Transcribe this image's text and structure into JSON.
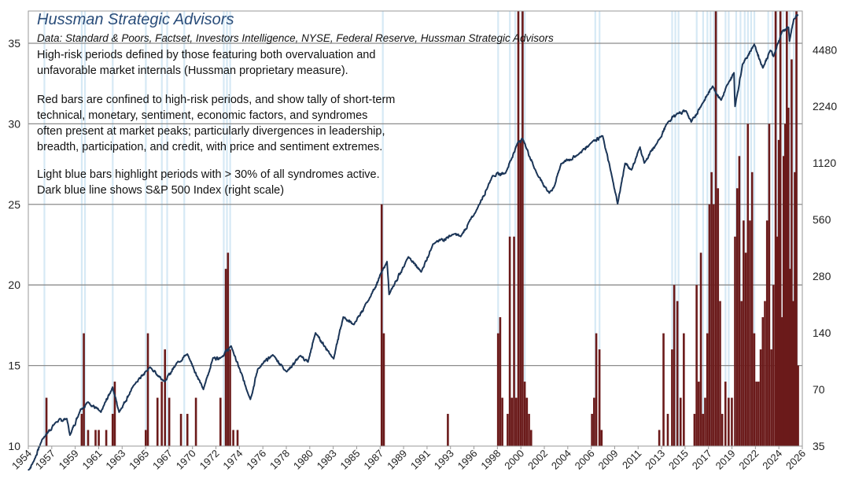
{
  "header": {
    "title": "Hussman Strategic Advisors",
    "source": "Data: Standard & Poors, Factset,  Investors Intelligence,  NYSE, Federal Reserve, Hussman Strategic Advisors"
  },
  "notes": {
    "p1": [
      "High-risk periods defined by those featuring both overvaluation and",
      "unfavorable market internals (Hussman proprietary measure)."
    ],
    "p2": [
      "Red bars are confined to high-risk periods, and show tally of short-term",
      "technical, monetary, sentiment, economic factors, and syndromes",
      "often  present at market peaks; particularly divergences in leadership,",
      "breadth, participation, and credit, with price and sentiment extremes."
    ],
    "p3": [
      "Light blue bars highlight periods with > 30% of all syndromes active.",
      "Dark blue line shows S&P 500 Index (right scale)"
    ]
  },
  "colors": {
    "red_bar": "#6b1a1a",
    "sp500_line": "#1b3557",
    "light_blue": "#d6e9f5",
    "grid": "#8c8c8c",
    "title": "#2a4d7a"
  },
  "chart_data": {
    "type": "bar",
    "left_axis": {
      "range": [
        10,
        37
      ],
      "ticks": [
        10,
        15,
        20,
        25,
        30,
        35
      ]
    },
    "right_axis": {
      "scale": "log",
      "range": [
        35,
        7200
      ],
      "ticks": [
        35,
        70,
        140,
        280,
        560,
        1120,
        2240,
        4480
      ]
    },
    "x_range": [
      1954,
      2026.5
    ],
    "x_tick_labels": [
      "1954",
      "1957",
      "1959",
      "1961",
      "1963",
      "1965",
      "1967",
      "1970",
      "1972",
      "1974",
      "1976",
      "1978",
      "1980",
      "1983",
      "1985",
      "1987",
      "1989",
      "1991",
      "1993",
      "1996",
      "1998",
      "2000",
      "2002",
      "2004",
      "2006",
      "2009",
      "2011",
      "2013",
      "2015",
      "2017",
      "2019",
      "2022",
      "2024",
      "2026"
    ],
    "grid": true,
    "red_bars": [
      {
        "x": 1955.7,
        "v": 13
      },
      {
        "x": 1959.0,
        "v": 12
      },
      {
        "x": 1959.2,
        "v": 17
      },
      {
        "x": 1959.6,
        "v": 11
      },
      {
        "x": 1960.3,
        "v": 11
      },
      {
        "x": 1960.6,
        "v": 11
      },
      {
        "x": 1961.3,
        "v": 11
      },
      {
        "x": 1961.9,
        "v": 12
      },
      {
        "x": 1962.1,
        "v": 14
      },
      {
        "x": 1965.0,
        "v": 11
      },
      {
        "x": 1965.2,
        "v": 17
      },
      {
        "x": 1966.1,
        "v": 13
      },
      {
        "x": 1966.5,
        "v": 14
      },
      {
        "x": 1966.8,
        "v": 16
      },
      {
        "x": 1967.2,
        "v": 13
      },
      {
        "x": 1968.3,
        "v": 12
      },
      {
        "x": 1968.9,
        "v": 12
      },
      {
        "x": 1969.7,
        "v": 13
      },
      {
        "x": 1972.0,
        "v": 13
      },
      {
        "x": 1972.5,
        "v": 21
      },
      {
        "x": 1972.7,
        "v": 22
      },
      {
        "x": 1972.9,
        "v": 16
      },
      {
        "x": 1973.2,
        "v": 11
      },
      {
        "x": 1973.6,
        "v": 11
      },
      {
        "x": 1987.1,
        "v": 25
      },
      {
        "x": 1987.3,
        "v": 17
      },
      {
        "x": 1993.3,
        "v": 12
      },
      {
        "x": 1998.0,
        "v": 17
      },
      {
        "x": 1998.2,
        "v": 18
      },
      {
        "x": 1998.4,
        "v": 13
      },
      {
        "x": 1998.9,
        "v": 12
      },
      {
        "x": 1999.1,
        "v": 23
      },
      {
        "x": 1999.3,
        "v": 13
      },
      {
        "x": 1999.5,
        "v": 23
      },
      {
        "x": 1999.7,
        "v": 13
      },
      {
        "x": 1999.9,
        "v": 37
      },
      {
        "x": 2000.1,
        "v": 29
      },
      {
        "x": 2000.3,
        "v": 37
      },
      {
        "x": 2000.5,
        "v": 14
      },
      {
        "x": 2000.7,
        "v": 13
      },
      {
        "x": 2000.9,
        "v": 12
      },
      {
        "x": 2001.1,
        "v": 11
      },
      {
        "x": 2006.8,
        "v": 12
      },
      {
        "x": 2007.0,
        "v": 13
      },
      {
        "x": 2007.2,
        "v": 17
      },
      {
        "x": 2007.5,
        "v": 16
      },
      {
        "x": 2007.7,
        "v": 11
      },
      {
        "x": 2013.1,
        "v": 11
      },
      {
        "x": 2013.5,
        "v": 17
      },
      {
        "x": 2013.9,
        "v": 12
      },
      {
        "x": 2014.3,
        "v": 16
      },
      {
        "x": 2014.5,
        "v": 20
      },
      {
        "x": 2014.8,
        "v": 19
      },
      {
        "x": 2015.1,
        "v": 13
      },
      {
        "x": 2015.4,
        "v": 17
      },
      {
        "x": 2016.4,
        "v": 12
      },
      {
        "x": 2016.6,
        "v": 20
      },
      {
        "x": 2016.8,
        "v": 14
      },
      {
        "x": 2017.0,
        "v": 22
      },
      {
        "x": 2017.2,
        "v": 12
      },
      {
        "x": 2017.4,
        "v": 13
      },
      {
        "x": 2017.6,
        "v": 17
      },
      {
        "x": 2017.8,
        "v": 25
      },
      {
        "x": 2018.0,
        "v": 27
      },
      {
        "x": 2018.2,
        "v": 25
      },
      {
        "x": 2018.4,
        "v": 37
      },
      {
        "x": 2018.6,
        "v": 26
      },
      {
        "x": 2018.8,
        "v": 19
      },
      {
        "x": 2019.0,
        "v": 12
      },
      {
        "x": 2019.3,
        "v": 14
      },
      {
        "x": 2019.6,
        "v": 13
      },
      {
        "x": 2019.9,
        "v": 13
      },
      {
        "x": 2020.2,
        "v": 23
      },
      {
        "x": 2020.4,
        "v": 26
      },
      {
        "x": 2020.6,
        "v": 28
      },
      {
        "x": 2020.8,
        "v": 19
      },
      {
        "x": 2021.0,
        "v": 24
      },
      {
        "x": 2021.2,
        "v": 22
      },
      {
        "x": 2021.4,
        "v": 30
      },
      {
        "x": 2021.6,
        "v": 24
      },
      {
        "x": 2021.8,
        "v": 27
      },
      {
        "x": 2022.0,
        "v": 17
      },
      {
        "x": 2022.2,
        "v": 14
      },
      {
        "x": 2022.4,
        "v": 14
      },
      {
        "x": 2022.6,
        "v": 16
      },
      {
        "x": 2022.8,
        "v": 18
      },
      {
        "x": 2023.0,
        "v": 19
      },
      {
        "x": 2023.2,
        "v": 24
      },
      {
        "x": 2023.4,
        "v": 30
      },
      {
        "x": 2023.6,
        "v": 16
      },
      {
        "x": 2023.8,
        "v": 20
      },
      {
        "x": 2024.0,
        "v": 37
      },
      {
        "x": 2024.15,
        "v": 23
      },
      {
        "x": 2024.3,
        "v": 29
      },
      {
        "x": 2024.45,
        "v": 37
      },
      {
        "x": 2024.6,
        "v": 18
      },
      {
        "x": 2024.75,
        "v": 28
      },
      {
        "x": 2024.9,
        "v": 30
      },
      {
        "x": 2025.05,
        "v": 37
      },
      {
        "x": 2025.2,
        "v": 31
      },
      {
        "x": 2025.35,
        "v": 21
      },
      {
        "x": 2025.5,
        "v": 34
      },
      {
        "x": 2025.65,
        "v": 19
      },
      {
        "x": 2025.8,
        "v": 27
      },
      {
        "x": 2025.95,
        "v": 37
      },
      {
        "x": 2026.1,
        "v": 15
      }
    ],
    "light_blue_periods": [
      1955.5,
      1959.0,
      1959.3,
      1961.9,
      1965.0,
      1966.5,
      1967.0,
      1968.6,
      1972.3,
      1972.6,
      1972.9,
      1987.2,
      1998.0,
      1999.1,
      1999.6,
      1999.9,
      2000.2,
      2000.5,
      2007.1,
      2007.5,
      2014.3,
      2014.6,
      2014.9,
      2016.6,
      2017.2,
      2017.6,
      2017.9,
      2018.2,
      2018.5,
      2019.3,
      2019.6,
      2020.3,
      2020.7,
      2021.1,
      2021.4,
      2021.7,
      2022.0,
      2023.3,
      2023.7,
      2024.1,
      2024.4,
      2024.7,
      2025.0,
      2025.3,
      2025.7,
      2026.0
    ],
    "sp500_anchors": [
      [
        1954.0,
        26
      ],
      [
        1954.5,
        29
      ],
      [
        1955.3,
        38
      ],
      [
        1956.6,
        47
      ],
      [
        1957.6,
        49
      ],
      [
        1957.9,
        40
      ],
      [
        1958.9,
        55
      ],
      [
        1959.6,
        60
      ],
      [
        1960.8,
        53
      ],
      [
        1961.9,
        72
      ],
      [
        1962.5,
        53
      ],
      [
        1963.9,
        74
      ],
      [
        1965.4,
        92
      ],
      [
        1966.8,
        77
      ],
      [
        1967.9,
        97
      ],
      [
        1968.9,
        108
      ],
      [
        1970.4,
        70
      ],
      [
        1971.3,
        103
      ],
      [
        1972.0,
        103
      ],
      [
        1973.0,
        119
      ],
      [
        1974.8,
        62
      ],
      [
        1975.5,
        90
      ],
      [
        1976.9,
        107
      ],
      [
        1978.2,
        87
      ],
      [
        1979.5,
        106
      ],
      [
        1980.2,
        98
      ],
      [
        1980.9,
        140
      ],
      [
        1982.6,
        102
      ],
      [
        1983.5,
        170
      ],
      [
        1984.5,
        155
      ],
      [
        1985.9,
        210
      ],
      [
        1987.6,
        335
      ],
      [
        1987.8,
        224
      ],
      [
        1989.6,
        355
      ],
      [
        1990.8,
        295
      ],
      [
        1991.9,
        415
      ],
      [
        1993.9,
        470
      ],
      [
        1994.5,
        455
      ],
      [
        1995.9,
        615
      ],
      [
        1997.5,
        960
      ],
      [
        1998.7,
        990
      ],
      [
        1999.9,
        1460
      ],
      [
        2000.3,
        1510
      ],
      [
        2001.7,
        965
      ],
      [
        2002.8,
        775
      ],
      [
        2003.3,
        850
      ],
      [
        2003.9,
        1110
      ],
      [
        2005.5,
        1240
      ],
      [
        2006.9,
        1470
      ],
      [
        2007.8,
        1560
      ],
      [
        2008.8,
        875
      ],
      [
        2009.2,
        680
      ],
      [
        2009.9,
        1115
      ],
      [
        2010.5,
        1030
      ],
      [
        2011.3,
        1360
      ],
      [
        2011.7,
        1120
      ],
      [
        2012.9,
        1430
      ],
      [
        2013.9,
        1840
      ],
      [
        2014.8,
        2060
      ],
      [
        2015.6,
        2120
      ],
      [
        2016.1,
        1850
      ],
      [
        2017.1,
        2300
      ],
      [
        2018.1,
        2870
      ],
      [
        2018.9,
        2420
      ],
      [
        2019.6,
        3000
      ],
      [
        2020.1,
        3380
      ],
      [
        2020.2,
        2240
      ],
      [
        2020.9,
        3750
      ],
      [
        2022.0,
        4790
      ],
      [
        2022.8,
        3590
      ],
      [
        2023.5,
        4450
      ],
      [
        2023.8,
        4130
      ],
      [
        2024.6,
        5600
      ],
      [
        2025.2,
        5900
      ],
      [
        2025.3,
        4980
      ],
      [
        2025.7,
        6500
      ],
      [
        2026.1,
        6900
      ]
    ]
  }
}
